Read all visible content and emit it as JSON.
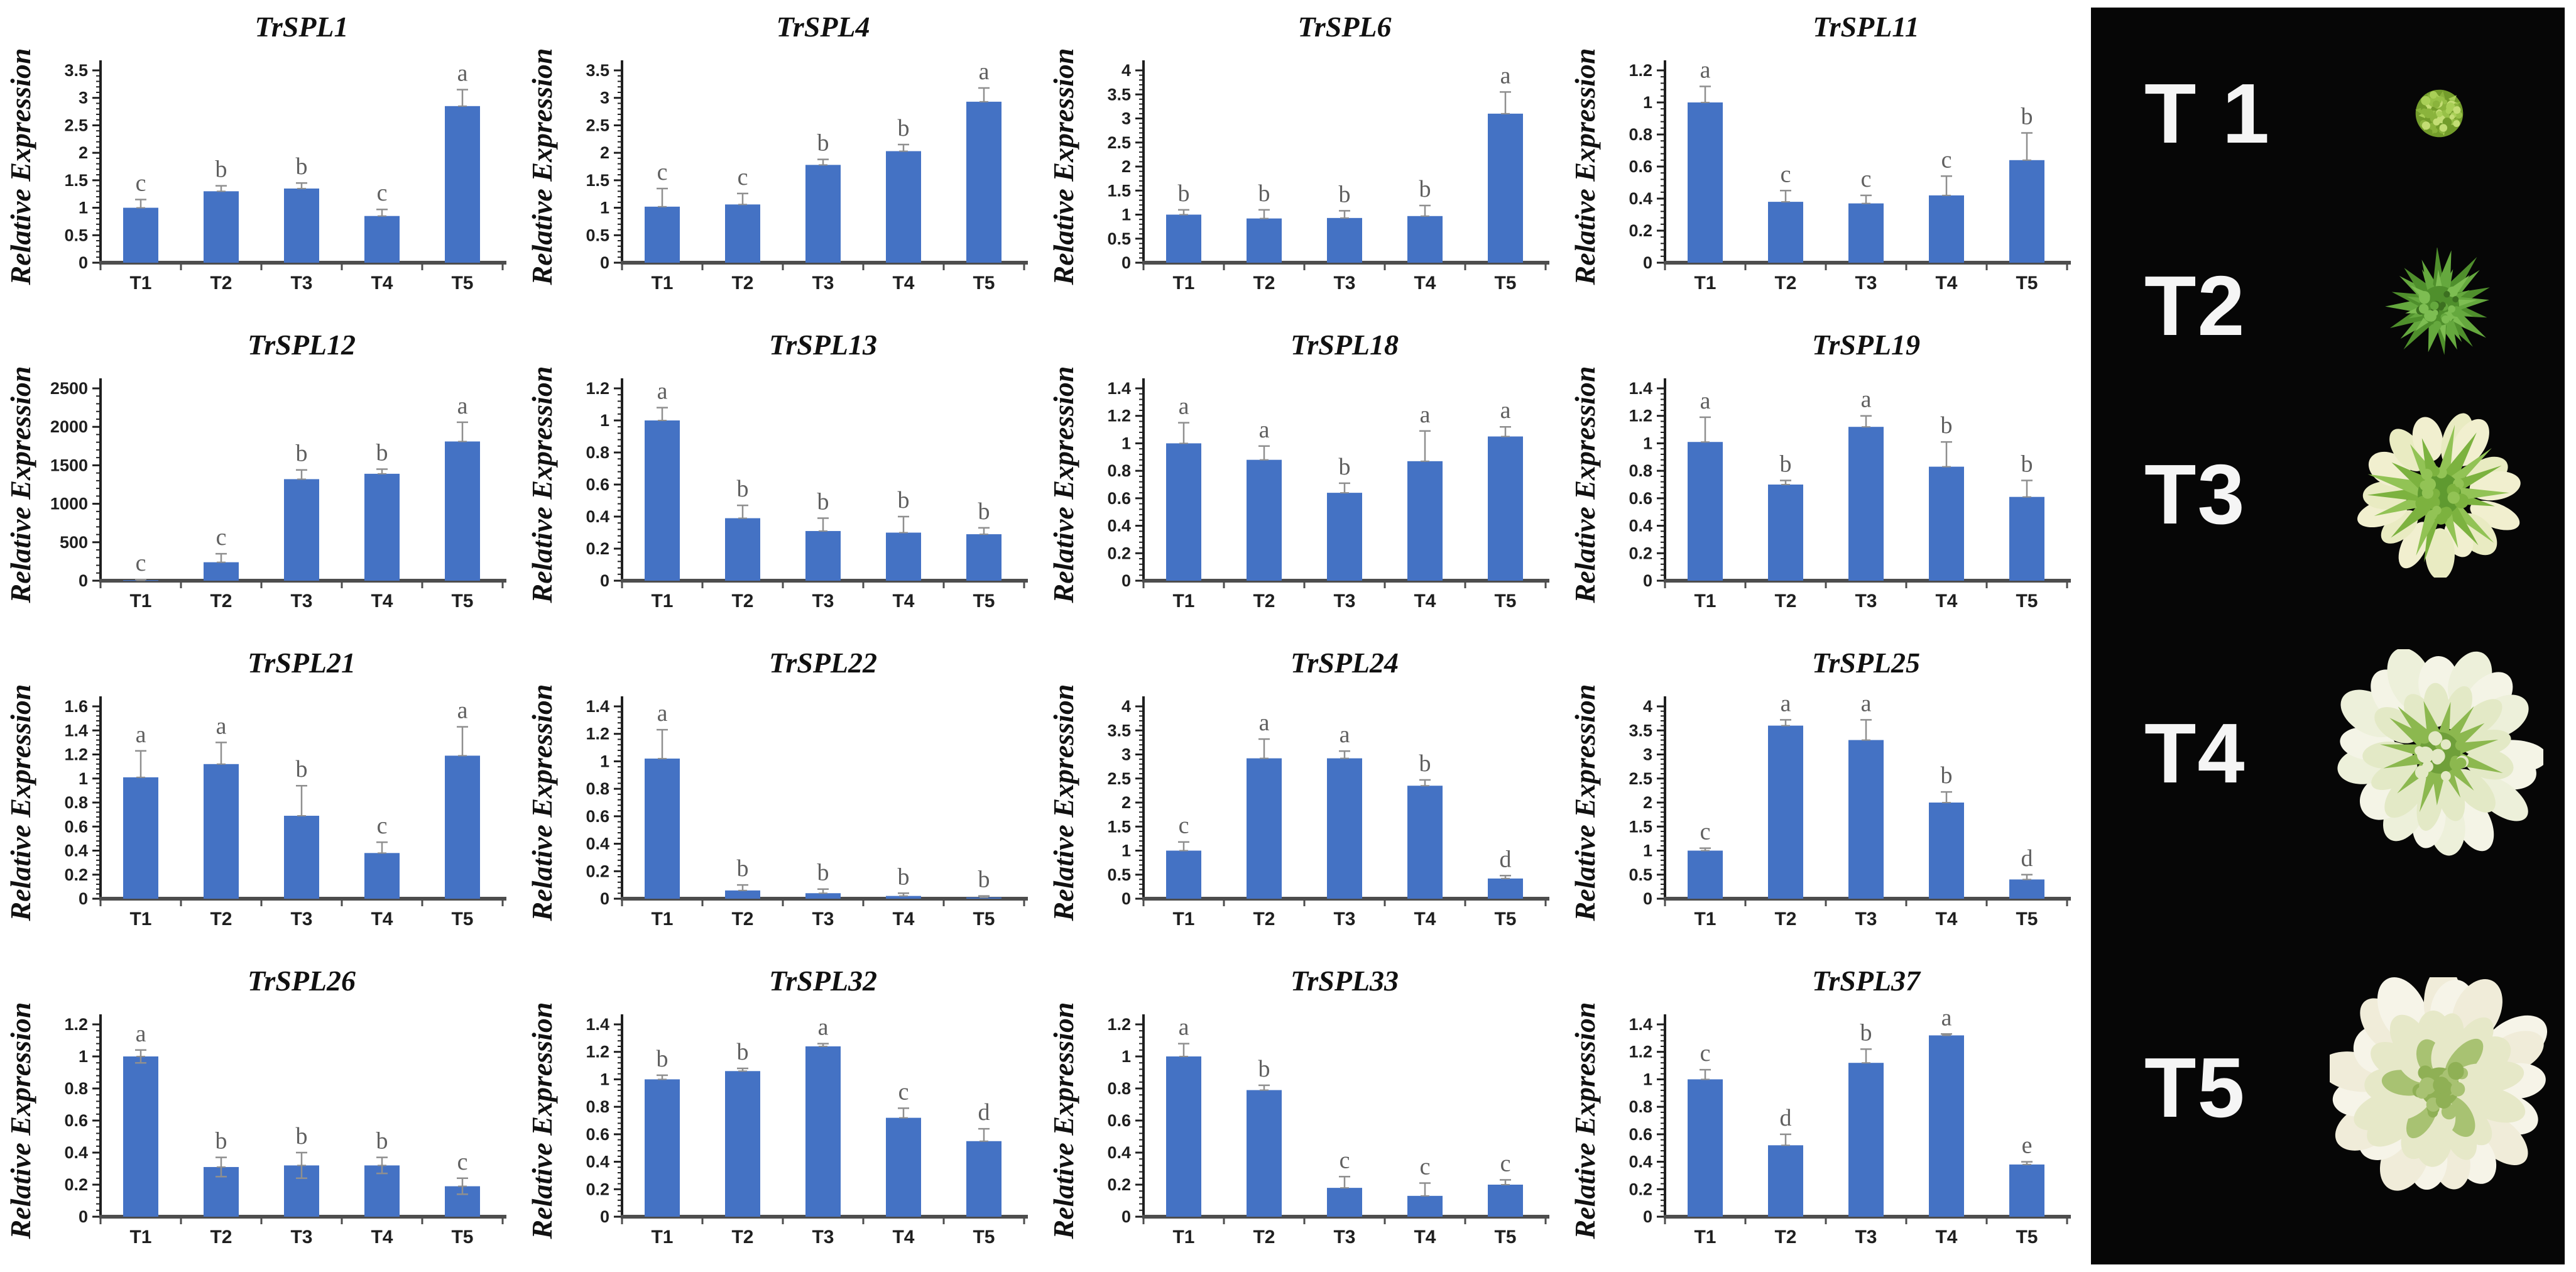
{
  "figure": {
    "ylabel": "Relative Expression",
    "categories": [
      "T1",
      "T2",
      "T3",
      "T4",
      "T5"
    ],
    "bar_color": "#4472C4",
    "error_bar_color": "#8f8f8f",
    "letter_color": "#5f5f5f",
    "axis_color": "#1f1f1f",
    "baseline_color": "#4d4d4d",
    "title_color": "#111111"
  },
  "chart_data": [
    {
      "type": "bar",
      "title": "TrSPL1",
      "ylabel": "Relative Expression",
      "xlabel": "",
      "categories": [
        "T1",
        "T2",
        "T3",
        "T4",
        "T5"
      ],
      "values": [
        1.0,
        1.3,
        1.35,
        0.85,
        2.85
      ],
      "errors": [
        0.15,
        0.1,
        0.1,
        0.12,
        0.3
      ],
      "letters": [
        "c",
        "b",
        "b",
        "c",
        "a"
      ],
      "ylim": [
        0,
        3.5
      ],
      "yticks": [
        0,
        0.5,
        1,
        1.5,
        2,
        2.5,
        3,
        3.5
      ],
      "grid": false
    },
    {
      "type": "bar",
      "title": "TrSPL4",
      "ylabel": "Relative Expression",
      "xlabel": "",
      "categories": [
        "T1",
        "T2",
        "T3",
        "T4",
        "T5"
      ],
      "values": [
        1.02,
        1.06,
        1.78,
        2.03,
        2.93
      ],
      "errors": [
        0.33,
        0.2,
        0.1,
        0.12,
        0.25
      ],
      "letters": [
        "c",
        "c",
        "b",
        "b",
        "a"
      ],
      "ylim": [
        0,
        3.5
      ],
      "yticks": [
        0,
        0.5,
        1,
        1.5,
        2,
        2.5,
        3,
        3.5
      ],
      "grid": false
    },
    {
      "type": "bar",
      "title": "TrSPL6",
      "ylabel": "Relative Expression",
      "xlabel": "",
      "categories": [
        "T1",
        "T2",
        "T3",
        "T4",
        "T5"
      ],
      "values": [
        1.0,
        0.92,
        0.93,
        0.97,
        3.1
      ],
      "errors": [
        0.1,
        0.18,
        0.15,
        0.22,
        0.45
      ],
      "letters": [
        "b",
        "b",
        "b",
        "b",
        "a"
      ],
      "ylim": [
        0,
        4
      ],
      "yticks": [
        0,
        0.5,
        1,
        1.5,
        2,
        2.5,
        3,
        3.5,
        4
      ],
      "grid": false
    },
    {
      "type": "bar",
      "title": "TrSPL11",
      "ylabel": "Relative Expression",
      "xlabel": "",
      "categories": [
        "T1",
        "T2",
        "T3",
        "T4",
        "T5"
      ],
      "values": [
        1.0,
        0.38,
        0.37,
        0.42,
        0.64
      ],
      "errors": [
        0.1,
        0.07,
        0.05,
        0.12,
        0.17
      ],
      "letters": [
        "a",
        "c",
        "c",
        "c",
        "b"
      ],
      "ylim": [
        0,
        1.2
      ],
      "yticks": [
        0,
        0.2,
        0.4,
        0.6,
        0.8,
        1,
        1.2
      ],
      "grid": false
    },
    {
      "type": "bar",
      "title": "TrSPL12",
      "ylabel": "Relative Expression",
      "xlabel": "",
      "categories": [
        "T1",
        "T2",
        "T3",
        "T4",
        "T5"
      ],
      "values": [
        5,
        240,
        1320,
        1390,
        1810
      ],
      "errors": [
        10,
        110,
        120,
        60,
        250
      ],
      "letters": [
        "c",
        "c",
        "b",
        "b",
        "a"
      ],
      "ylim": [
        0,
        2500
      ],
      "yticks": [
        0,
        500,
        1000,
        1500,
        2000,
        2500
      ],
      "grid": false
    },
    {
      "type": "bar",
      "title": "TrSPL13",
      "ylabel": "Relative Expression",
      "xlabel": "",
      "categories": [
        "T1",
        "T2",
        "T3",
        "T4",
        "T5"
      ],
      "values": [
        1.0,
        0.39,
        0.31,
        0.3,
        0.29
      ],
      "errors": [
        0.08,
        0.08,
        0.08,
        0.1,
        0.04
      ],
      "letters": [
        "a",
        "b",
        "b",
        "b",
        "b"
      ],
      "ylim": [
        0,
        1.2
      ],
      "yticks": [
        0,
        0.2,
        0.4,
        0.6,
        0.8,
        1,
        1.2
      ],
      "grid": false
    },
    {
      "type": "bar",
      "title": "TrSPL18",
      "ylabel": "Relative Expression",
      "xlabel": "",
      "categories": [
        "T1",
        "T2",
        "T3",
        "T4",
        "T5"
      ],
      "values": [
        1.0,
        0.88,
        0.64,
        0.87,
        1.05
      ],
      "errors": [
        0.15,
        0.1,
        0.07,
        0.22,
        0.07
      ],
      "letters": [
        "a",
        "a",
        "b",
        "a",
        "a"
      ],
      "ylim": [
        0,
        1.4
      ],
      "yticks": [
        0,
        0.2,
        0.4,
        0.6,
        0.8,
        1,
        1.2,
        1.4
      ],
      "grid": false
    },
    {
      "type": "bar",
      "title": "TrSPL19",
      "ylabel": "Relative Expression",
      "xlabel": "",
      "categories": [
        "T1",
        "T2",
        "T3",
        "T4",
        "T5"
      ],
      "values": [
        1.01,
        0.7,
        1.12,
        0.83,
        0.61
      ],
      "errors": [
        0.18,
        0.03,
        0.08,
        0.18,
        0.12
      ],
      "letters": [
        "a",
        "b",
        "a",
        "b",
        "b"
      ],
      "ylim": [
        0,
        1.4
      ],
      "yticks": [
        0,
        0.2,
        0.4,
        0.6,
        0.8,
        1,
        1.2,
        1.4
      ],
      "grid": false
    },
    {
      "type": "bar",
      "title": "TrSPL21",
      "ylabel": "Relative Expression",
      "xlabel": "",
      "categories": [
        "T1",
        "T2",
        "T3",
        "T4",
        "T5"
      ],
      "values": [
        1.01,
        1.12,
        0.69,
        0.38,
        1.19
      ],
      "errors": [
        0.22,
        0.18,
        0.25,
        0.09,
        0.24
      ],
      "letters": [
        "a",
        "a",
        "b",
        "c",
        "a"
      ],
      "ylim": [
        0,
        1.6
      ],
      "yticks": [
        0,
        0.2,
        0.4,
        0.6,
        0.8,
        1,
        1.2,
        1.4,
        1.6
      ],
      "grid": false
    },
    {
      "type": "bar",
      "title": "TrSPL22",
      "ylabel": "Relative Expression",
      "xlabel": "",
      "categories": [
        "T1",
        "T2",
        "T3",
        "T4",
        "T5"
      ],
      "values": [
        1.02,
        0.06,
        0.04,
        0.02,
        0.01
      ],
      "errors": [
        0.21,
        0.04,
        0.03,
        0.02,
        0.01
      ],
      "letters": [
        "a",
        "b",
        "b",
        "b",
        "b"
      ],
      "ylim": [
        0,
        1.4
      ],
      "yticks": [
        0,
        0.2,
        0.4,
        0.6,
        0.8,
        1,
        1.2,
        1.4
      ],
      "grid": false
    },
    {
      "type": "bar",
      "title": "TrSPL24",
      "ylabel": "Relative Expression",
      "xlabel": "",
      "categories": [
        "T1",
        "T2",
        "T3",
        "T4",
        "T5"
      ],
      "values": [
        1.0,
        2.92,
        2.92,
        2.35,
        0.42
      ],
      "errors": [
        0.18,
        0.4,
        0.15,
        0.12,
        0.06
      ],
      "letters": [
        "c",
        "a",
        "a",
        "b",
        "d"
      ],
      "ylim": [
        0,
        4
      ],
      "yticks": [
        0,
        0.5,
        1,
        1.5,
        2,
        2.5,
        3,
        3.5,
        4
      ],
      "grid": false
    },
    {
      "type": "bar",
      "title": "TrSPL25",
      "ylabel": "Relative Expression",
      "xlabel": "",
      "categories": [
        "T1",
        "T2",
        "T3",
        "T4",
        "T5"
      ],
      "values": [
        1.0,
        3.6,
        3.3,
        2.0,
        0.4
      ],
      "errors": [
        0.05,
        0.12,
        0.42,
        0.22,
        0.1
      ],
      "letters": [
        "c",
        "a",
        "a",
        "b",
        "d"
      ],
      "ylim": [
        0,
        4
      ],
      "yticks": [
        0,
        0.5,
        1,
        1.5,
        2,
        2.5,
        3,
        3.5,
        4
      ],
      "grid": false
    },
    {
      "type": "bar",
      "title": "TrSPL26",
      "ylabel": "Relative Expression",
      "xlabel": "",
      "categories": [
        "T1",
        "T2",
        "T3",
        "T4",
        "T5"
      ],
      "values": [
        1.0,
        0.31,
        0.32,
        0.32,
        0.19
      ],
      "errors": [
        0.04,
        0.06,
        0.08,
        0.05,
        0.05
      ],
      "letters": [
        "a",
        "b",
        "b",
        "b",
        "c"
      ],
      "ylim": [
        0,
        1.2
      ],
      "yticks": [
        0,
        0.2,
        0.4,
        0.6,
        0.8,
        1,
        1.2
      ],
      "grid": false,
      "error_both_directions": true
    },
    {
      "type": "bar",
      "title": "TrSPL32",
      "ylabel": "Relative Expression",
      "xlabel": "",
      "categories": [
        "T1",
        "T2",
        "T3",
        "T4",
        "T5"
      ],
      "values": [
        1.0,
        1.06,
        1.24,
        0.72,
        0.55
      ],
      "errors": [
        0.03,
        0.02,
        0.02,
        0.07,
        0.09
      ],
      "letters": [
        "b",
        "b",
        "a",
        "c",
        "d"
      ],
      "ylim": [
        0,
        1.4
      ],
      "yticks": [
        0,
        0.2,
        0.4,
        0.6,
        0.8,
        1,
        1.2,
        1.4
      ],
      "grid": false
    },
    {
      "type": "bar",
      "title": "TrSPL33",
      "ylabel": "Relative Expression",
      "xlabel": "",
      "categories": [
        "T1",
        "T2",
        "T3",
        "T4",
        "T5"
      ],
      "values": [
        1.0,
        0.79,
        0.18,
        0.13,
        0.2
      ],
      "errors": [
        0.08,
        0.03,
        0.07,
        0.08,
        0.03
      ],
      "letters": [
        "a",
        "b",
        "c",
        "c",
        "c"
      ],
      "ylim": [
        0,
        1.2
      ],
      "yticks": [
        0,
        0.2,
        0.4,
        0.6,
        0.8,
        1,
        1.2
      ],
      "grid": false
    },
    {
      "type": "bar",
      "title": "TrSPL37",
      "ylabel": "Relative Expression",
      "xlabel": "",
      "categories": [
        "T1",
        "T2",
        "T3",
        "T4",
        "T5"
      ],
      "values": [
        1.0,
        0.52,
        1.12,
        1.32,
        0.38
      ],
      "errors": [
        0.07,
        0.08,
        0.1,
        0.01,
        0.02
      ],
      "letters": [
        "c",
        "d",
        "b",
        "a",
        "e"
      ],
      "ylim": [
        0,
        1.4
      ],
      "yticks": [
        0,
        0.2,
        0.4,
        0.6,
        0.8,
        1,
        1.2,
        1.4
      ],
      "grid": false
    }
  ],
  "stage_panel": {
    "background": "#060606",
    "label_color": "#f5f5f5",
    "stages": [
      {
        "label": "T 1",
        "flower_kind": "bud",
        "flower_size": 105,
        "row_height_pct": 16.8,
        "palette": [
          "#8ab33c",
          "#a9cf57",
          "#c3dd74",
          "#739c2b",
          "#97c047"
        ]
      },
      {
        "label": "T2",
        "flower_kind": "spiky-green",
        "flower_size": 185,
        "row_height_pct": 13.8,
        "palette": [
          "#4f8f2c",
          "#65a83e",
          "#7dbd52",
          "#3c7020"
        ]
      },
      {
        "label": "T3",
        "flower_kind": "green-white",
        "flower_size": 265,
        "row_height_pct": 16.2,
        "palette": [
          "#f1efcf",
          "#e9ebc2",
          "#7cb23f",
          "#92c355",
          "#5f9a30"
        ]
      },
      {
        "label": "T4",
        "flower_kind": "white-open",
        "flower_size": 330,
        "row_height_pct": 25.0,
        "palette": [
          "#f4f4e6",
          "#edf0da",
          "#e3e9c6",
          "#8cb84f",
          "#6f9f3a"
        ]
      },
      {
        "label": "T5",
        "flower_kind": "white-full",
        "flower_size": 350,
        "row_height_pct": 28.2,
        "palette": [
          "#f6f4e8",
          "#f0ecd9",
          "#e6e8c8",
          "#a8c272",
          "#8fb055"
        ]
      }
    ]
  }
}
